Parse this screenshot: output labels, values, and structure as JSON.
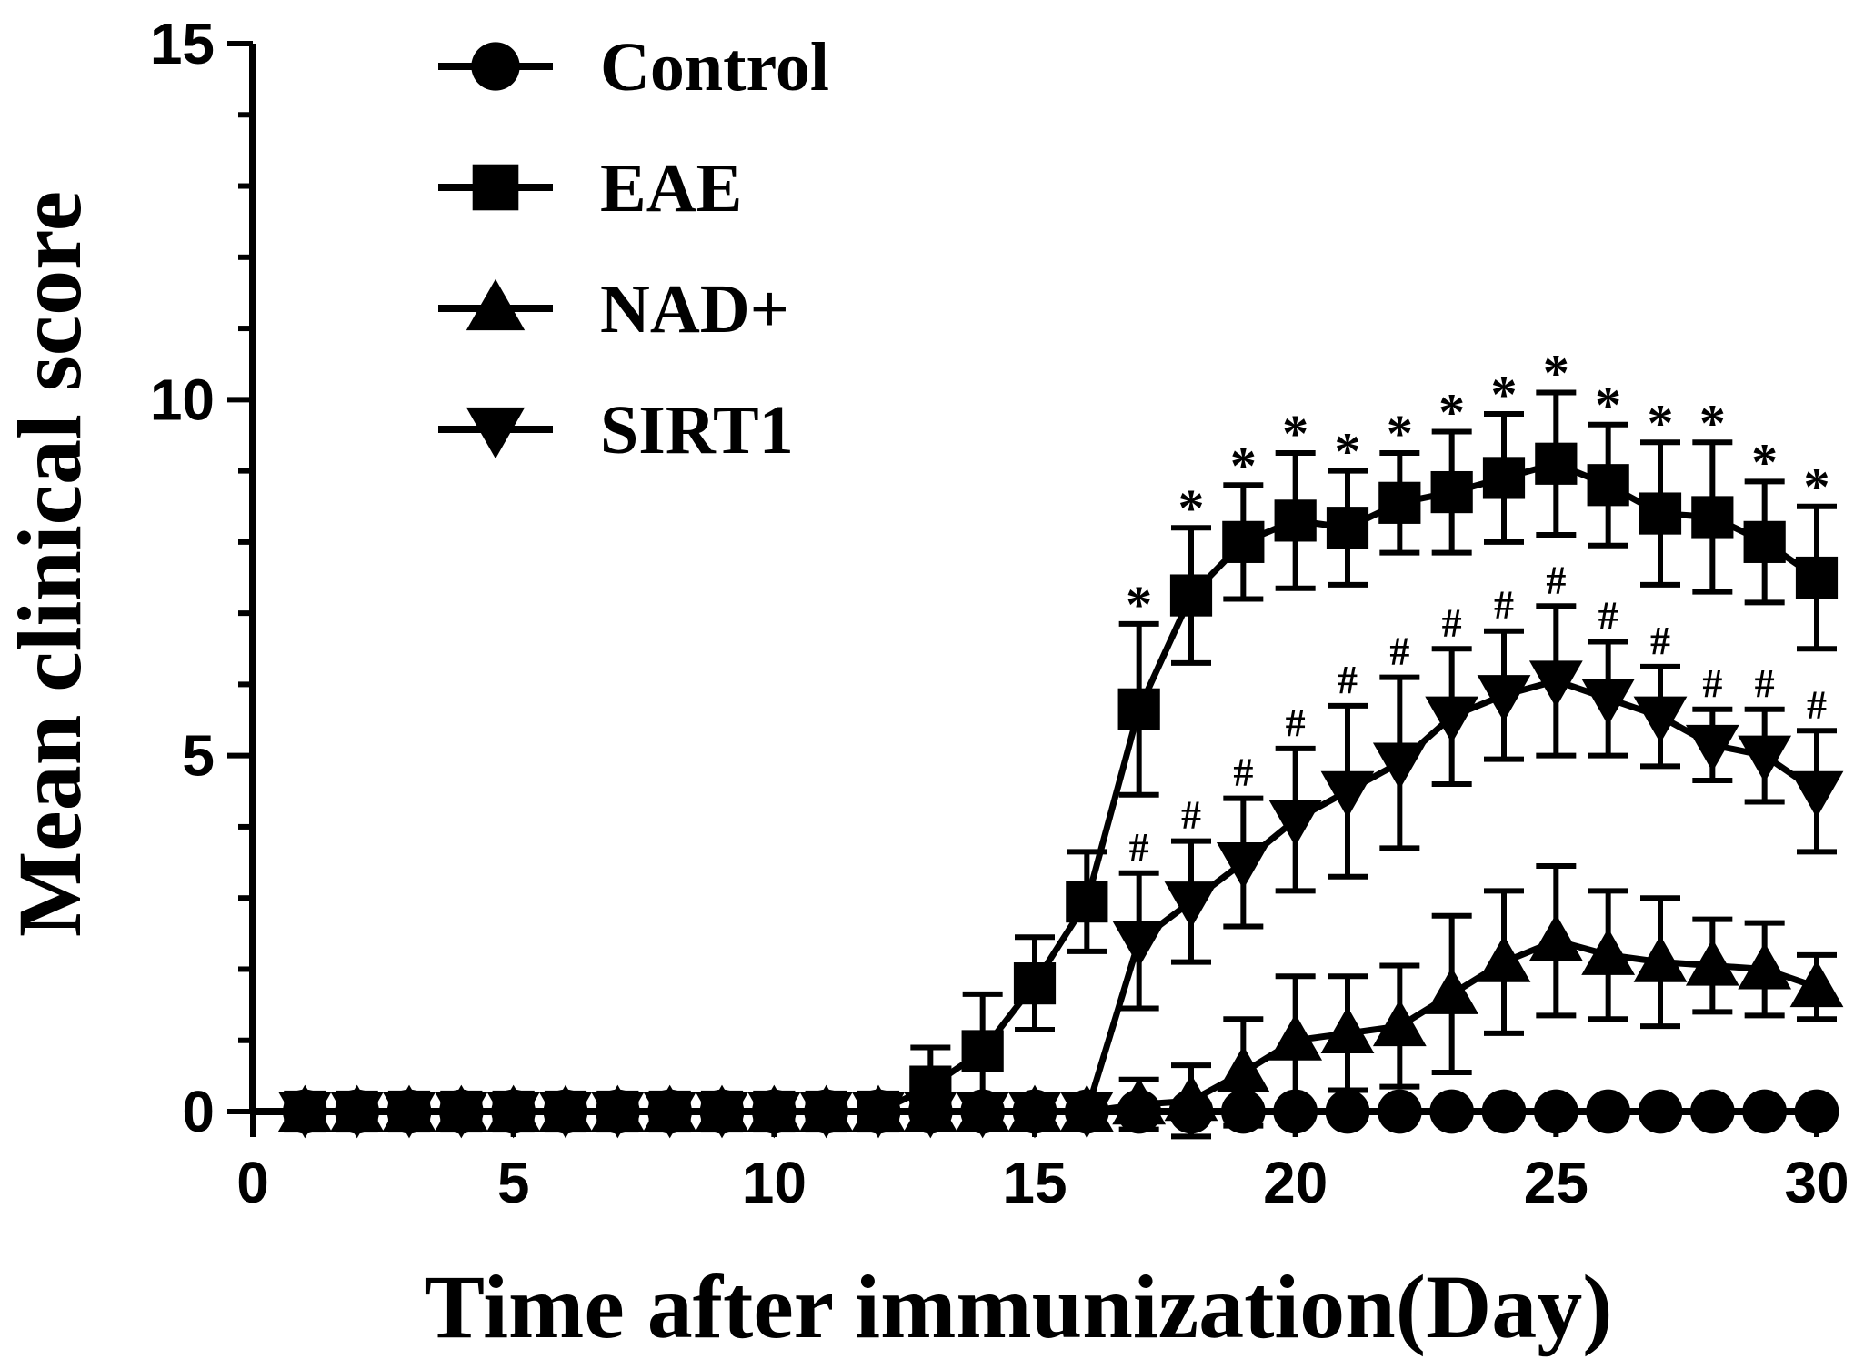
{
  "chart_data": {
    "type": "line",
    "xlabel": "Time after immunization(Day)",
    "ylabel": "Mean clinical score",
    "xlim": [
      0,
      30
    ],
    "ylim": [
      0,
      15
    ],
    "xticks": [
      "0",
      "5",
      "10",
      "15",
      "20",
      "25",
      "30"
    ],
    "yticks": [
      "0",
      "5",
      "10",
      "15"
    ],
    "grid": false,
    "legend_position": "top-left",
    "x": [
      1,
      2,
      3,
      4,
      5,
      6,
      7,
      8,
      9,
      10,
      11,
      12,
      13,
      14,
      15,
      16,
      17,
      18,
      19,
      20,
      21,
      22,
      23,
      24,
      25,
      26,
      27,
      28,
      29,
      30
    ],
    "series": [
      {
        "name": "Control",
        "marker": "circle",
        "values": [
          0,
          0,
          0,
          0,
          0,
          0,
          0,
          0,
          0,
          0,
          0,
          0,
          0,
          0,
          0,
          0,
          0,
          0,
          0,
          0,
          0,
          0,
          0,
          0,
          0,
          0,
          0,
          0,
          0,
          0
        ],
        "errors": [
          0,
          0,
          0,
          0,
          0,
          0,
          0,
          0,
          0,
          0,
          0,
          0,
          0,
          0,
          0,
          0,
          0,
          0,
          0,
          0,
          0,
          0,
          0,
          0,
          0,
          0,
          0,
          0,
          0,
          0
        ]
      },
      {
        "name": "EAE",
        "marker": "square",
        "values": [
          0,
          0,
          0,
          0,
          0,
          0,
          0,
          0,
          0,
          0,
          0,
          0,
          0.35,
          0.85,
          1.8,
          2.95,
          5.65,
          7.25,
          8.0,
          8.3,
          8.2,
          8.55,
          8.7,
          8.9,
          9.1,
          8.8,
          8.4,
          8.35,
          8.0,
          7.5
        ],
        "errors": [
          0,
          0,
          0,
          0,
          0,
          0,
          0,
          0,
          0,
          0,
          0,
          0,
          0.55,
          0.8,
          0.65,
          0.7,
          1.2,
          0.95,
          0.8,
          0.95,
          0.8,
          0.7,
          0.85,
          0.9,
          1.0,
          0.85,
          1.0,
          1.05,
          0.85,
          1.0
        ]
      },
      {
        "name": "NAD+",
        "marker": "triangle-up",
        "values": [
          0,
          0,
          0,
          0,
          0,
          0,
          0,
          0,
          0,
          0,
          0,
          0,
          0,
          0,
          0,
          0,
          0.1,
          0.15,
          0.55,
          1.0,
          1.1,
          1.2,
          1.65,
          2.1,
          2.4,
          2.2,
          2.1,
          2.05,
          2.0,
          1.75
        ],
        "errors": [
          0,
          0,
          0,
          0,
          0,
          0,
          0,
          0,
          0,
          0,
          0,
          0,
          0,
          0,
          0,
          0,
          0.35,
          0.5,
          0.75,
          0.9,
          0.8,
          0.85,
          1.1,
          1.0,
          1.05,
          0.9,
          0.9,
          0.65,
          0.65,
          0.45
        ]
      },
      {
        "name": "SIRT1",
        "marker": "triangle-down",
        "values": [
          0,
          0,
          0,
          0,
          0,
          0,
          0,
          0,
          0,
          0,
          0,
          0,
          0,
          0,
          0,
          0,
          2.4,
          2.95,
          3.5,
          4.1,
          4.5,
          4.9,
          5.55,
          5.85,
          6.05,
          5.8,
          5.55,
          5.15,
          5.0,
          4.5
        ],
        "errors": [
          0,
          0,
          0,
          0,
          0,
          0,
          0,
          0,
          0,
          0,
          0,
          0,
          0,
          0,
          0,
          0,
          0.95,
          0.85,
          0.9,
          1.0,
          1.2,
          1.2,
          0.95,
          0.9,
          1.05,
          0.8,
          0.7,
          0.5,
          0.65,
          0.85
        ]
      }
    ],
    "annotations": {
      "EAE_star_days": [
        17,
        18,
        19,
        20,
        21,
        22,
        23,
        24,
        25,
        26,
        27,
        28,
        29,
        30
      ],
      "star_symbol": "*",
      "SIRT1_hash_days": [
        17,
        18,
        19,
        20,
        21,
        22,
        23,
        24,
        25,
        26,
        27,
        28,
        29,
        30
      ],
      "hash_symbol": "#"
    },
    "colors": {
      "line": "#000000",
      "background": "#ffffff"
    }
  }
}
